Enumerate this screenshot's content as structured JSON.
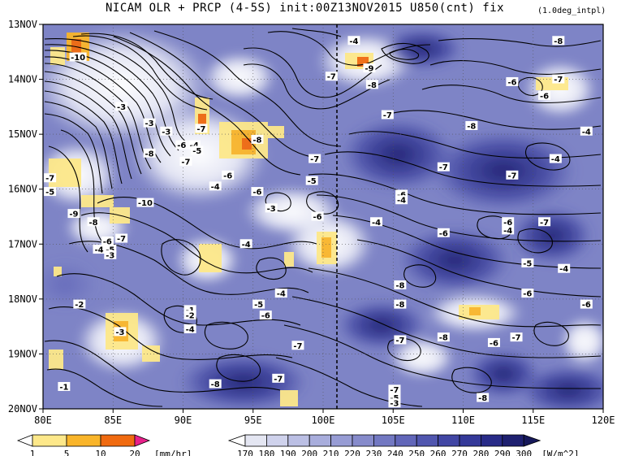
{
  "title": {
    "main": "NICAM  OLR + PRCP (4-5S) init:00Z13NOV2015 U850(cnt) fix",
    "sub": "(1.0deg_intpl)"
  },
  "chart_data": {
    "type": "heatmap",
    "description_type": "hovmoller",
    "x_axis": {
      "ticks": [
        "80E",
        "85E",
        "90E",
        "95E",
        "100E",
        "105E",
        "110E",
        "115E",
        "120E"
      ],
      "range": [
        80,
        120
      ]
    },
    "y_axis": {
      "ticks": [
        "13NOV",
        "14NOV",
        "15NOV",
        "16NOV",
        "17NOV",
        "18NOV",
        "19NOV",
        "20NOV"
      ]
    },
    "dashed_reference_longitude": "101E",
    "contour_labels": [
      {
        "text": "-4",
        "lon": 102.2,
        "day": 13.3
      },
      {
        "text": "-8",
        "lon": 116.8,
        "day": 13.3
      },
      {
        "text": "-10",
        "lon": 82.5,
        "day": 13.6
      },
      {
        "text": "-9",
        "lon": 103.3,
        "day": 13.8
      },
      {
        "text": "-7",
        "lon": 100.6,
        "day": 13.95
      },
      {
        "text": "-6",
        "lon": 113.5,
        "day": 14.05
      },
      {
        "text": "-7",
        "lon": 116.8,
        "day": 14.0
      },
      {
        "text": "-8",
        "lon": 103.5,
        "day": 14.1
      },
      {
        "text": "-6",
        "lon": 115.8,
        "day": 14.3
      },
      {
        "text": "-3",
        "lon": 85.6,
        "day": 14.5
      },
      {
        "text": "-3",
        "lon": 87.6,
        "day": 14.8
      },
      {
        "text": "-7",
        "lon": 104.6,
        "day": 14.65
      },
      {
        "text": "-8",
        "lon": 110.6,
        "day": 14.85
      },
      {
        "text": "-7",
        "lon": 91.3,
        "day": 14.9
      },
      {
        "text": "-3",
        "lon": 88.8,
        "day": 14.95
      },
      {
        "text": "-4",
        "lon": 118.8,
        "day": 14.95
      },
      {
        "text": "-8",
        "lon": 95.3,
        "day": 15.1
      },
      {
        "text": "-6",
        "lon": 89.9,
        "day": 15.2
      },
      {
        "text": "-4",
        "lon": 90.8,
        "day": 15.2
      },
      {
        "text": "-5",
        "lon": 91.0,
        "day": 15.3
      },
      {
        "text": "-8",
        "lon": 87.6,
        "day": 15.35
      },
      {
        "text": "-4",
        "lon": 116.6,
        "day": 15.45
      },
      {
        "text": "-7",
        "lon": 90.2,
        "day": 15.5
      },
      {
        "text": "-7",
        "lon": 99.4,
        "day": 15.45
      },
      {
        "text": "-7",
        "lon": 108.6,
        "day": 15.6
      },
      {
        "text": "-7",
        "lon": 113.5,
        "day": 15.75
      },
      {
        "text": "-7",
        "lon": 80.5,
        "day": 15.8
      },
      {
        "text": "-6",
        "lon": 93.2,
        "day": 15.75
      },
      {
        "text": "-5",
        "lon": 99.2,
        "day": 15.85
      },
      {
        "text": "-4",
        "lon": 92.3,
        "day": 15.95
      },
      {
        "text": "-6",
        "lon": 95.3,
        "day": 16.05
      },
      {
        "text": "-5",
        "lon": 80.5,
        "day": 16.05
      },
      {
        "text": "-6",
        "lon": 105.6,
        "day": 16.1
      },
      {
        "text": "-4",
        "lon": 105.6,
        "day": 16.2
      },
      {
        "text": "-10",
        "lon": 87.3,
        "day": 16.25
      },
      {
        "text": "-3",
        "lon": 96.3,
        "day": 16.35
      },
      {
        "text": "-9",
        "lon": 82.2,
        "day": 16.45
      },
      {
        "text": "-6",
        "lon": 99.6,
        "day": 16.5
      },
      {
        "text": "-8",
        "lon": 83.6,
        "day": 16.6
      },
      {
        "text": "-4",
        "lon": 103.8,
        "day": 16.6
      },
      {
        "text": "-6",
        "lon": 113.2,
        "day": 16.6
      },
      {
        "text": "-7",
        "lon": 115.8,
        "day": 16.6
      },
      {
        "text": "-4",
        "lon": 113.2,
        "day": 16.75
      },
      {
        "text": "-6",
        "lon": 108.6,
        "day": 16.8
      },
      {
        "text": "-7",
        "lon": 85.6,
        "day": 16.9
      },
      {
        "text": "-6",
        "lon": 84.6,
        "day": 16.95
      },
      {
        "text": "-4",
        "lon": 84.0,
        "day": 17.1
      },
      {
        "text": "-5",
        "lon": 84.8,
        "day": 17.1
      },
      {
        "text": "-3",
        "lon": 84.8,
        "day": 17.2
      },
      {
        "text": "-4",
        "lon": 94.5,
        "day": 17.0
      },
      {
        "text": "-5",
        "lon": 114.6,
        "day": 17.35
      },
      {
        "text": "-4",
        "lon": 117.2,
        "day": 17.45
      },
      {
        "text": "-8",
        "lon": 105.5,
        "day": 17.75
      },
      {
        "text": "-4",
        "lon": 97.0,
        "day": 17.9
      },
      {
        "text": "-6",
        "lon": 114.6,
        "day": 17.9
      },
      {
        "text": "-2",
        "lon": 82.6,
        "day": 18.1
      },
      {
        "text": "-5",
        "lon": 95.4,
        "day": 18.1
      },
      {
        "text": "-8",
        "lon": 105.5,
        "day": 18.1
      },
      {
        "text": "-6",
        "lon": 95.9,
        "day": 18.3
      },
      {
        "text": "-6",
        "lon": 118.8,
        "day": 18.1
      },
      {
        "text": "-1",
        "lon": 90.5,
        "day": 18.2
      },
      {
        "text": "-2",
        "lon": 90.5,
        "day": 18.3
      },
      {
        "text": "-4",
        "lon": 90.5,
        "day": 18.55
      },
      {
        "text": "-3",
        "lon": 85.5,
        "day": 18.6
      },
      {
        "text": "-6",
        "lon": 112.2,
        "day": 18.8
      },
      {
        "text": "-7",
        "lon": 105.5,
        "day": 18.75
      },
      {
        "text": "-8",
        "lon": 108.6,
        "day": 18.7
      },
      {
        "text": "-7",
        "lon": 113.8,
        "day": 18.7
      },
      {
        "text": "-7",
        "lon": 98.2,
        "day": 18.85
      },
      {
        "text": "-7",
        "lon": 96.8,
        "day": 19.45
      },
      {
        "text": "-8",
        "lon": 92.3,
        "day": 19.55
      },
      {
        "text": "-1",
        "lon": 81.5,
        "day": 19.6
      },
      {
        "text": "-7",
        "lon": 105.1,
        "day": 19.65
      },
      {
        "text": "-5",
        "lon": 105.1,
        "day": 19.8
      },
      {
        "text": "-3",
        "lon": 105.1,
        "day": 19.9
      },
      {
        "text": "-8",
        "lon": 111.4,
        "day": 19.8
      }
    ]
  },
  "colorbars": {
    "prcp": {
      "labels": [
        "1",
        "5",
        "10",
        "20"
      ],
      "unit": "[mm/hr]",
      "colors": [
        "#ffffff",
        "#fde88a",
        "#f9b52a",
        "#f06a10",
        "#e8208a"
      ]
    },
    "olr": {
      "labels": [
        "170",
        "180",
        "190",
        "200",
        "210",
        "220",
        "230",
        "240",
        "250",
        "260",
        "270",
        "280",
        "290",
        "300"
      ],
      "unit": "[W/m^2]",
      "colors": [
        "#ffffff",
        "#e4e6f2",
        "#cfd2ec",
        "#bbbfe4",
        "#a8addc",
        "#979cd4",
        "#868bcb",
        "#7278c2",
        "#6166b9",
        "#5056af",
        "#4146a4",
        "#343999",
        "#282b88",
        "#1e2070",
        "#16185a"
      ]
    }
  }
}
